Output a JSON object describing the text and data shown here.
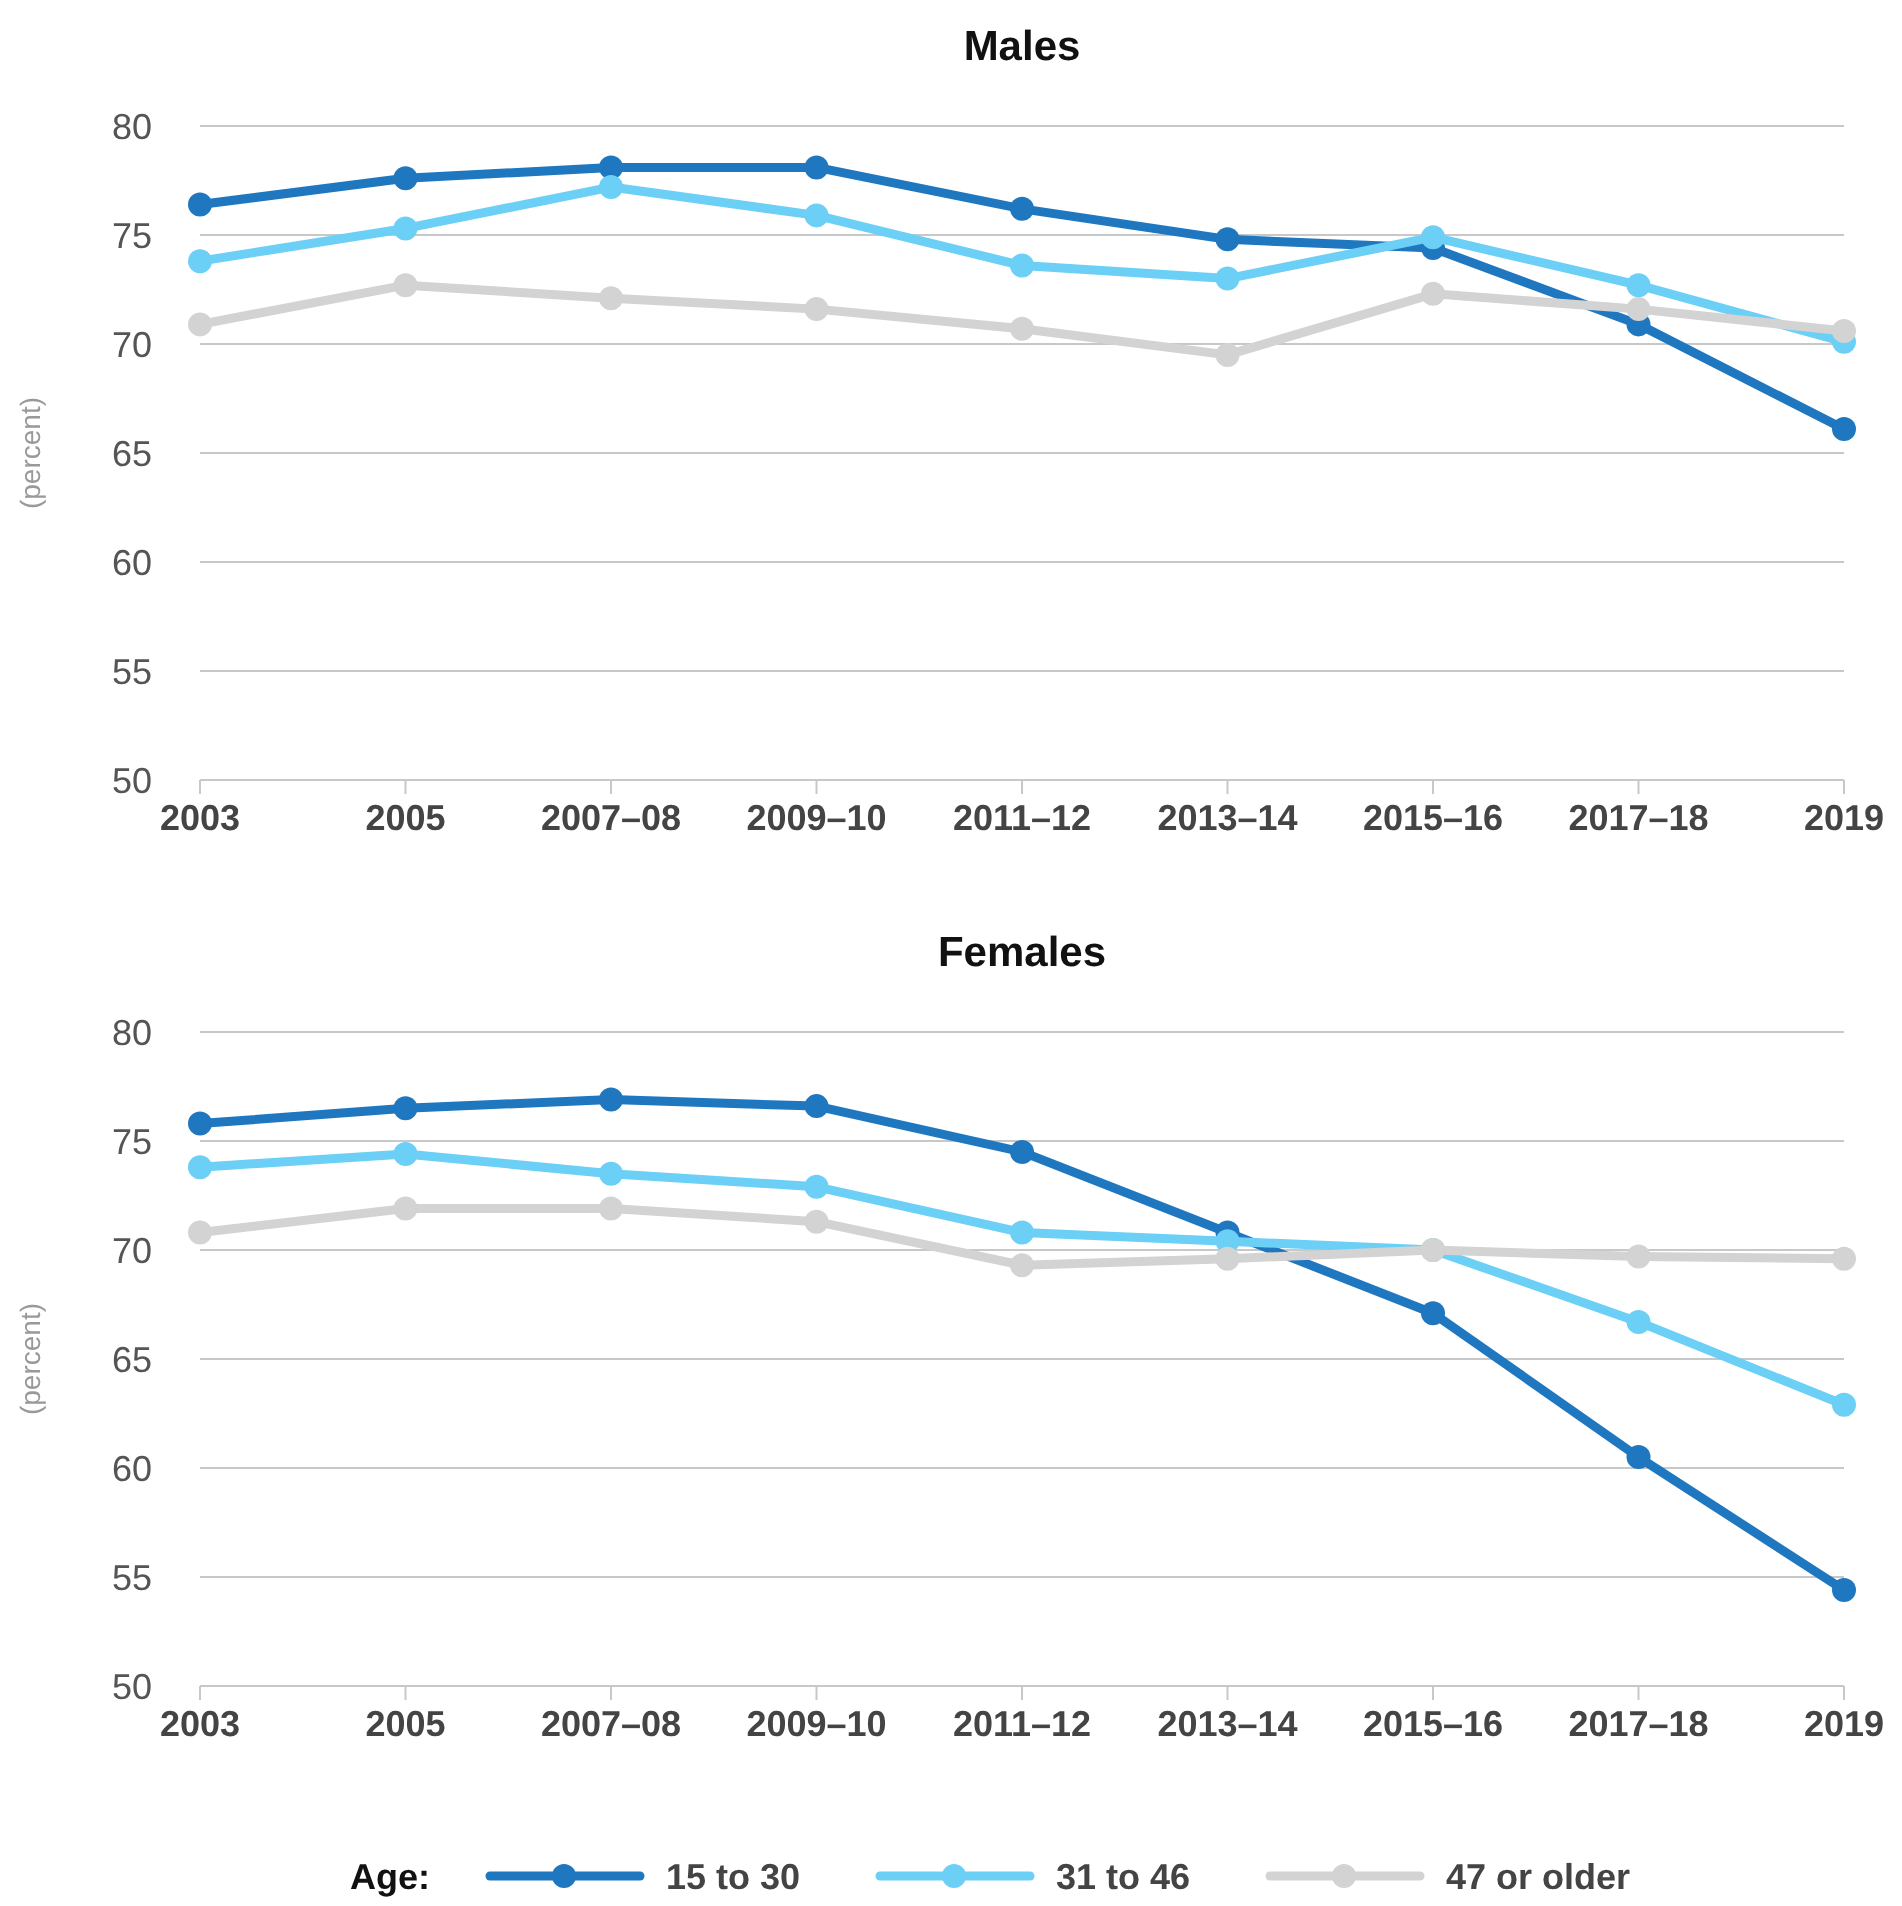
{
  "chart_data": [
    {
      "type": "line",
      "title": "Males",
      "ylabel": "(percent)",
      "categories": [
        "2003",
        "2005",
        "2007–08",
        "2009–10",
        "2011–12",
        "2013–14",
        "2015–16",
        "2017–18",
        "2019"
      ],
      "ylim": [
        50,
        80
      ],
      "yticks": [
        50,
        55,
        60,
        65,
        70,
        75,
        80
      ],
      "grid": "y",
      "marker": "circle",
      "legend": false,
      "series": [
        {
          "color": "#1f77c0",
          "values": [
            76.4,
            77.6,
            78.1,
            78.1,
            76.2,
            74.8,
            74.4,
            70.9,
            66.1
          ]
        },
        {
          "color": "#6ccff6",
          "values": [
            73.8,
            75.3,
            77.2,
            75.9,
            73.6,
            73.0,
            74.9,
            72.7,
            70.1
          ]
        },
        {
          "color": "#d3d3d3",
          "values": [
            70.9,
            72.7,
            72.1,
            71.6,
            70.7,
            69.5,
            72.3,
            71.6,
            70.6
          ]
        }
      ]
    },
    {
      "type": "line",
      "title": "Females",
      "ylabel": "(percent)",
      "legend_title": "Age:",
      "categories": [
        "2003",
        "2005",
        "2007–08",
        "2009–10",
        "2011–12",
        "2013–14",
        "2015–16",
        "2017–18",
        "2019"
      ],
      "ylim": [
        50,
        80
      ],
      "yticks": [
        50,
        55,
        60,
        65,
        70,
        75,
        80
      ],
      "grid": "y",
      "marker": "circle",
      "legend": "bottom",
      "series": [
        {
          "name": "15 to 30",
          "color": "#1f77c0",
          "values": [
            75.8,
            76.5,
            76.9,
            76.6,
            74.5,
            70.8,
            67.1,
            60.5,
            54.4
          ]
        },
        {
          "name": "31 to 46",
          "color": "#6ccff6",
          "values": [
            73.8,
            74.4,
            73.5,
            72.9,
            70.8,
            70.4,
            70.0,
            66.7,
            62.9
          ]
        },
        {
          "name": "47 or older",
          "color": "#d3d3d3",
          "values": [
            70.8,
            71.9,
            71.9,
            71.3,
            69.3,
            69.6,
            70.0,
            69.7,
            69.6
          ]
        }
      ]
    }
  ]
}
